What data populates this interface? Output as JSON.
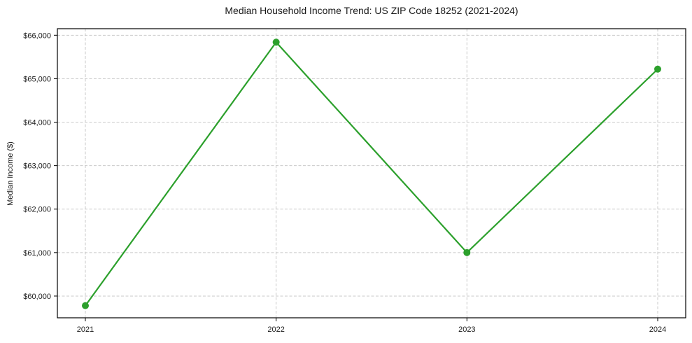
{
  "figure": {
    "background": "#ffffff"
  },
  "chart_data": {
    "type": "line",
    "title": "Median Household Income Trend: US ZIP Code 18252 (2021-2024)",
    "xlabel": "",
    "ylabel": "Median Income ($)",
    "categories": [
      "2021",
      "2022",
      "2023",
      "2024"
    ],
    "values": [
      59780,
      65840,
      61000,
      65220
    ],
    "ylim": [
      59500,
      66150
    ],
    "yticks": [
      60000,
      61000,
      62000,
      63000,
      64000,
      65000,
      66000
    ],
    "ytick_labels": [
      "$60,000",
      "$61,000",
      "$62,000",
      "$63,000",
      "$64,000",
      "$65,000",
      "$66,000"
    ],
    "grid": true,
    "grid_style": "dashed",
    "grid_color": "#c9c9c9",
    "axis_color": "#000000",
    "text_color": "#1a1a1a",
    "line_color": "#2ca02c",
    "marker": "circle",
    "marker_radius_px": 5,
    "legend_position": "none"
  }
}
